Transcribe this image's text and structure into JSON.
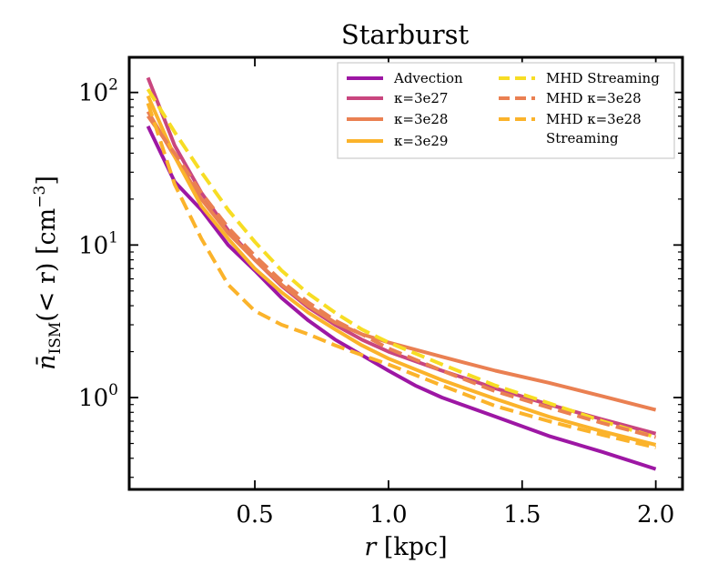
{
  "chart_data": {
    "type": "line",
    "title": "Starburst",
    "xlabel": "r [kpc]",
    "ylabel_parts": {
      "symbol": "n̄",
      "subscript": "ISM",
      "rest": "(< r) [cm",
      "exponent": "−3",
      "close": "]"
    },
    "xlim": [
      0.03,
      2.1
    ],
    "ylim": [
      0.25,
      170
    ],
    "yscale": "log",
    "xticks": [
      {
        "value": 0.5,
        "label": "0.5"
      },
      {
        "value": 1.0,
        "label": "1.0"
      },
      {
        "value": 1.5,
        "label": "1.5"
      },
      {
        "value": 2.0,
        "label": "2.0"
      }
    ],
    "yticks": [
      {
        "value": 1,
        "base": "10",
        "exp": "0"
      },
      {
        "value": 10,
        "base": "10",
        "exp": "1"
      },
      {
        "value": 100,
        "base": "10",
        "exp": "2"
      }
    ],
    "legend_position": "top-right",
    "series": [
      {
        "name": "Advection",
        "color": "#9d17a4",
        "dash": "solid",
        "x": [
          0.1,
          0.2,
          0.3,
          0.4,
          0.5,
          0.6,
          0.7,
          0.8,
          0.9,
          1.0,
          1.1,
          1.2,
          1.4,
          1.6,
          1.8,
          2.0
        ],
        "y": [
          60,
          26,
          17,
          10,
          6.8,
          4.5,
          3.2,
          2.4,
          1.9,
          1.5,
          1.2,
          1.0,
          0.75,
          0.56,
          0.44,
          0.34
        ]
      },
      {
        "name": "κ=3e27",
        "color": "#c9467f",
        "dash": "solid",
        "x": [
          0.1,
          0.2,
          0.3,
          0.4,
          0.5,
          0.6,
          0.7,
          0.8,
          0.9,
          1.0,
          1.2,
          1.4,
          1.6,
          1.8,
          2.0
        ],
        "y": [
          125,
          45,
          22,
          12.5,
          8,
          5.4,
          3.9,
          3.0,
          2.4,
          2.0,
          1.5,
          1.15,
          0.9,
          0.72,
          0.58
        ]
      },
      {
        "name": "κ=3e28",
        "color": "#ea8052",
        "dash": "solid",
        "x": [
          0.1,
          0.2,
          0.3,
          0.4,
          0.5,
          0.6,
          0.7,
          0.8,
          0.9,
          1.0,
          1.2,
          1.4,
          1.6,
          1.8,
          2.0
        ],
        "y": [
          75,
          38,
          20,
          12,
          8,
          5.5,
          4.0,
          3.1,
          2.6,
          2.3,
          1.85,
          1.5,
          1.25,
          1.02,
          0.83
        ]
      },
      {
        "name": "κ=3e29",
        "color": "#fbb32b",
        "dash": "solid",
        "x": [
          0.1,
          0.2,
          0.3,
          0.4,
          0.5,
          0.6,
          0.7,
          0.8,
          0.9,
          1.0,
          1.2,
          1.4,
          1.6,
          1.8,
          2.0
        ],
        "y": [
          95,
          38,
          18,
          11,
          7,
          4.9,
          3.6,
          2.8,
          2.2,
          1.8,
          1.3,
          0.98,
          0.75,
          0.6,
          0.49
        ]
      },
      {
        "name": "MHD Streaming",
        "color": "#f7dd24",
        "dash": "dashed",
        "x": [
          0.1,
          0.2,
          0.3,
          0.4,
          0.5,
          0.6,
          0.7,
          0.8,
          0.9,
          1.0,
          1.2,
          1.4,
          1.6,
          1.8,
          2.0
        ],
        "y": [
          105,
          55,
          30,
          17,
          10.5,
          6.8,
          4.8,
          3.6,
          2.8,
          2.3,
          1.65,
          1.2,
          0.92,
          0.7,
          0.55
        ]
      },
      {
        "name": "MHD κ=3e28",
        "color": "#ea8052",
        "dash": "dashed",
        "x": [
          0.1,
          0.2,
          0.3,
          0.4,
          0.5,
          0.6,
          0.7,
          0.8,
          0.9,
          1.0,
          1.2,
          1.4,
          1.6,
          1.8,
          2.0
        ],
        "y": [
          70,
          40,
          22,
          13,
          8.5,
          5.8,
          4.2,
          3.2,
          2.6,
          2.1,
          1.5,
          1.1,
          0.86,
          0.68,
          0.55
        ]
      },
      {
        "name": "MHD κ=3e28 Streaming",
        "color": "#fbb32b",
        "dash": "dashed",
        "x": [
          0.1,
          0.2,
          0.3,
          0.4,
          0.5,
          0.6,
          0.7,
          0.8,
          0.9,
          1.0,
          1.2,
          1.4,
          1.6,
          1.8,
          2.0
        ],
        "y": [
          85,
          25,
          11,
          5.5,
          3.7,
          3.0,
          2.6,
          2.2,
          1.9,
          1.65,
          1.2,
          0.88,
          0.7,
          0.57,
          0.47
        ]
      }
    ],
    "legend": {
      "left_column": [
        "Advection",
        "κ=3e27",
        "κ=3e28",
        "κ=3e29"
      ],
      "right_column": [
        "MHD Streaming",
        "MHD κ=3e28",
        "MHD κ=3e28",
        "Streaming"
      ]
    }
  }
}
